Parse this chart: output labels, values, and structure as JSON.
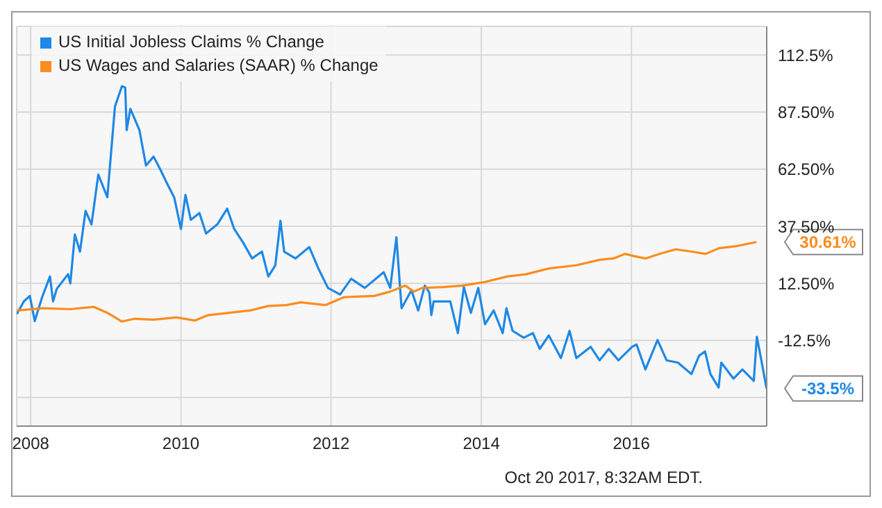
{
  "chart_data": {
    "type": "line",
    "xlim": [
      "2007-10-25",
      "2017-10-20"
    ],
    "xticks": [
      {
        "value": "2008-01-01",
        "label": "2008"
      },
      {
        "value": "2010-01-01",
        "label": "2010"
      },
      {
        "value": "2012-01-01",
        "label": "2012"
      },
      {
        "value": "2014-01-01",
        "label": "2014"
      },
      {
        "value": "2016-01-01",
        "label": "2016"
      }
    ],
    "ylim": [
      -50,
      125
    ],
    "yticks": [
      {
        "value": -37.5,
        "label": null
      },
      {
        "value": -12.5,
        "label": "-12.5%"
      },
      {
        "value": 12.5,
        "label": "12.50%"
      },
      {
        "value": 37.5,
        "label": "37.50%"
      },
      {
        "value": 62.5,
        "label": "62.50%"
      },
      {
        "value": 87.5,
        "label": "87.50%"
      },
      {
        "value": 112.5,
        "label": "112.5%"
      }
    ],
    "grid": true,
    "legend": "top left",
    "series": [
      {
        "name": "US Initial Jobless Claims % Change",
        "color": "#1e88e5",
        "x": [
          "2007-10-26",
          "2007-11-29",
          "2007-12-28",
          "2008-01-21",
          "2008-02-26",
          "2008-04-04",
          "2008-04-19",
          "2008-05-07",
          "2008-07-01",
          "2008-07-12",
          "2008-08-03",
          "2008-08-28",
          "2008-09-24",
          "2008-10-23",
          "2008-11-25",
          "2009-01-08",
          "2009-02-14",
          "2009-03-20",
          "2009-04-05",
          "2009-04-12",
          "2009-04-30",
          "2009-06-13",
          "2009-07-15",
          "2009-08-21",
          "2009-09-24",
          "2009-10-26",
          "2009-11-29",
          "2010-01-01",
          "2010-01-23",
          "2010-02-18",
          "2010-04-01",
          "2010-05-03",
          "2010-06-27",
          "2010-08-14",
          "2010-09-17",
          "2010-10-30",
          "2010-12-13",
          "2011-01-30",
          "2011-03-02",
          "2011-04-05",
          "2011-04-30",
          "2011-05-18",
          "2011-07-12",
          "2011-09-17",
          "2011-11-03",
          "2011-12-17",
          "2012-02-14",
          "2012-04-08",
          "2012-06-13",
          "2012-09-13",
          "2012-10-15",
          "2012-11-14",
          "2012-12-09",
          "2013-01-26",
          "2013-02-28",
          "2013-04-01",
          "2013-04-23",
          "2013-05-03",
          "2013-05-14",
          "2013-08-03",
          "2013-09-09",
          "2013-10-08",
          "2013-11-11",
          "2013-12-17",
          "2014-01-19",
          "2014-03-02",
          "2014-04-15",
          "2014-05-03",
          "2014-06-02",
          "2014-07-26",
          "2014-09-09",
          "2014-10-12",
          "2014-11-25",
          "2015-01-23",
          "2015-03-06",
          "2015-04-08",
          "2015-06-17",
          "2015-07-30",
          "2015-09-13",
          "2015-10-30",
          "2016-01-04",
          "2016-01-26",
          "2016-03-09",
          "2016-05-07",
          "2016-06-20",
          "2016-08-14",
          "2016-10-19",
          "2016-11-25",
          "2016-12-24",
          "2017-01-19",
          "2017-02-28",
          "2017-03-13",
          "2017-05-11",
          "2017-06-24",
          "2017-08-18",
          "2017-09-02",
          "2017-09-24",
          "2017-10-19"
        ],
        "values": [
          -0.9,
          4.6,
          7.0,
          -4.0,
          6.5,
          15.5,
          4.6,
          10.1,
          16.5,
          12.5,
          33.9,
          26.4,
          44.2,
          38.3,
          60.1,
          50.2,
          89.9,
          98.8,
          98.2,
          79.6,
          88.9,
          79.6,
          64.1,
          68.0,
          62.1,
          56.1,
          50.2,
          36.3,
          51.2,
          40.3,
          43.3,
          34.3,
          38.3,
          45.2,
          36.3,
          30.4,
          23.4,
          26.4,
          15.5,
          20.4,
          39.9,
          26.4,
          23.4,
          28.4,
          18.5,
          10.5,
          7.6,
          14.5,
          10.5,
          17.4,
          10.5,
          32.7,
          1.6,
          9.5,
          0.6,
          11.5,
          8.5,
          -1.4,
          4.6,
          4.6,
          -9.3,
          10.9,
          -0.4,
          10.5,
          -5.4,
          0.6,
          -9.3,
          1.6,
          -8.3,
          -11.3,
          -9.3,
          -16.2,
          -10.3,
          -20.2,
          -8.3,
          -20.2,
          -15.3,
          -21.2,
          -16.2,
          -21.2,
          -15.3,
          -14.3,
          -25.2,
          -12.3,
          -21.2,
          -22.2,
          -27.2,
          -19.2,
          -17.3,
          -27.2,
          -33.1,
          -22.2,
          -29.2,
          -25.2,
          -30.2,
          -10.9,
          -21.2,
          -33.5
        ]
      },
      {
        "name": "US Wages and Salaries (SAAR) % Change",
        "color": "#fb8c1e",
        "x": [
          "2007-10-26",
          "2008-03-02",
          "2008-07-12",
          "2008-11-03",
          "2009-01-08",
          "2009-03-20",
          "2009-05-21",
          "2009-08-21",
          "2009-12-09",
          "2010-03-09",
          "2010-05-14",
          "2010-12-02",
          "2011-03-02",
          "2011-05-29",
          "2011-08-07",
          "2011-12-06",
          "2012-03-06",
          "2012-07-30",
          "2012-10-15",
          "2012-12-27",
          "2013-02-07",
          "2013-03-20",
          "2013-07-01",
          "2013-09-27",
          "2014-01-19",
          "2014-05-07",
          "2014-08-07",
          "2014-11-25",
          "2015-04-08",
          "2015-07-30",
          "2015-10-05",
          "2015-12-02",
          "2016-01-16",
          "2016-03-09",
          "2016-05-18",
          "2016-08-03",
          "2016-10-19",
          "2016-12-28",
          "2017-03-02",
          "2017-06-02",
          "2017-08-31"
        ],
        "values": [
          0.6,
          1.6,
          1.2,
          2.2,
          -0.4,
          -4.2,
          -3.0,
          -3.4,
          -2.4,
          -3.8,
          -1.4,
          0.6,
          2.6,
          3.0,
          4.2,
          3.0,
          6.5,
          7.0,
          8.9,
          11.5,
          8.9,
          10.5,
          10.9,
          11.5,
          13.1,
          15.5,
          16.5,
          19.0,
          20.4,
          22.8,
          23.4,
          25.4,
          24.4,
          23.4,
          25.4,
          27.4,
          26.4,
          25.4,
          27.9,
          28.9,
          30.6
        ]
      }
    ],
    "annotations": [
      {
        "text": "-33.5%",
        "x": "2017-10-19",
        "y": -33.5
      },
      {
        "text": "30.61%",
        "x": "2017-08-31",
        "y": 30.6
      },
      "Oct 20 2017, 8:32AM EDT."
    ]
  }
}
